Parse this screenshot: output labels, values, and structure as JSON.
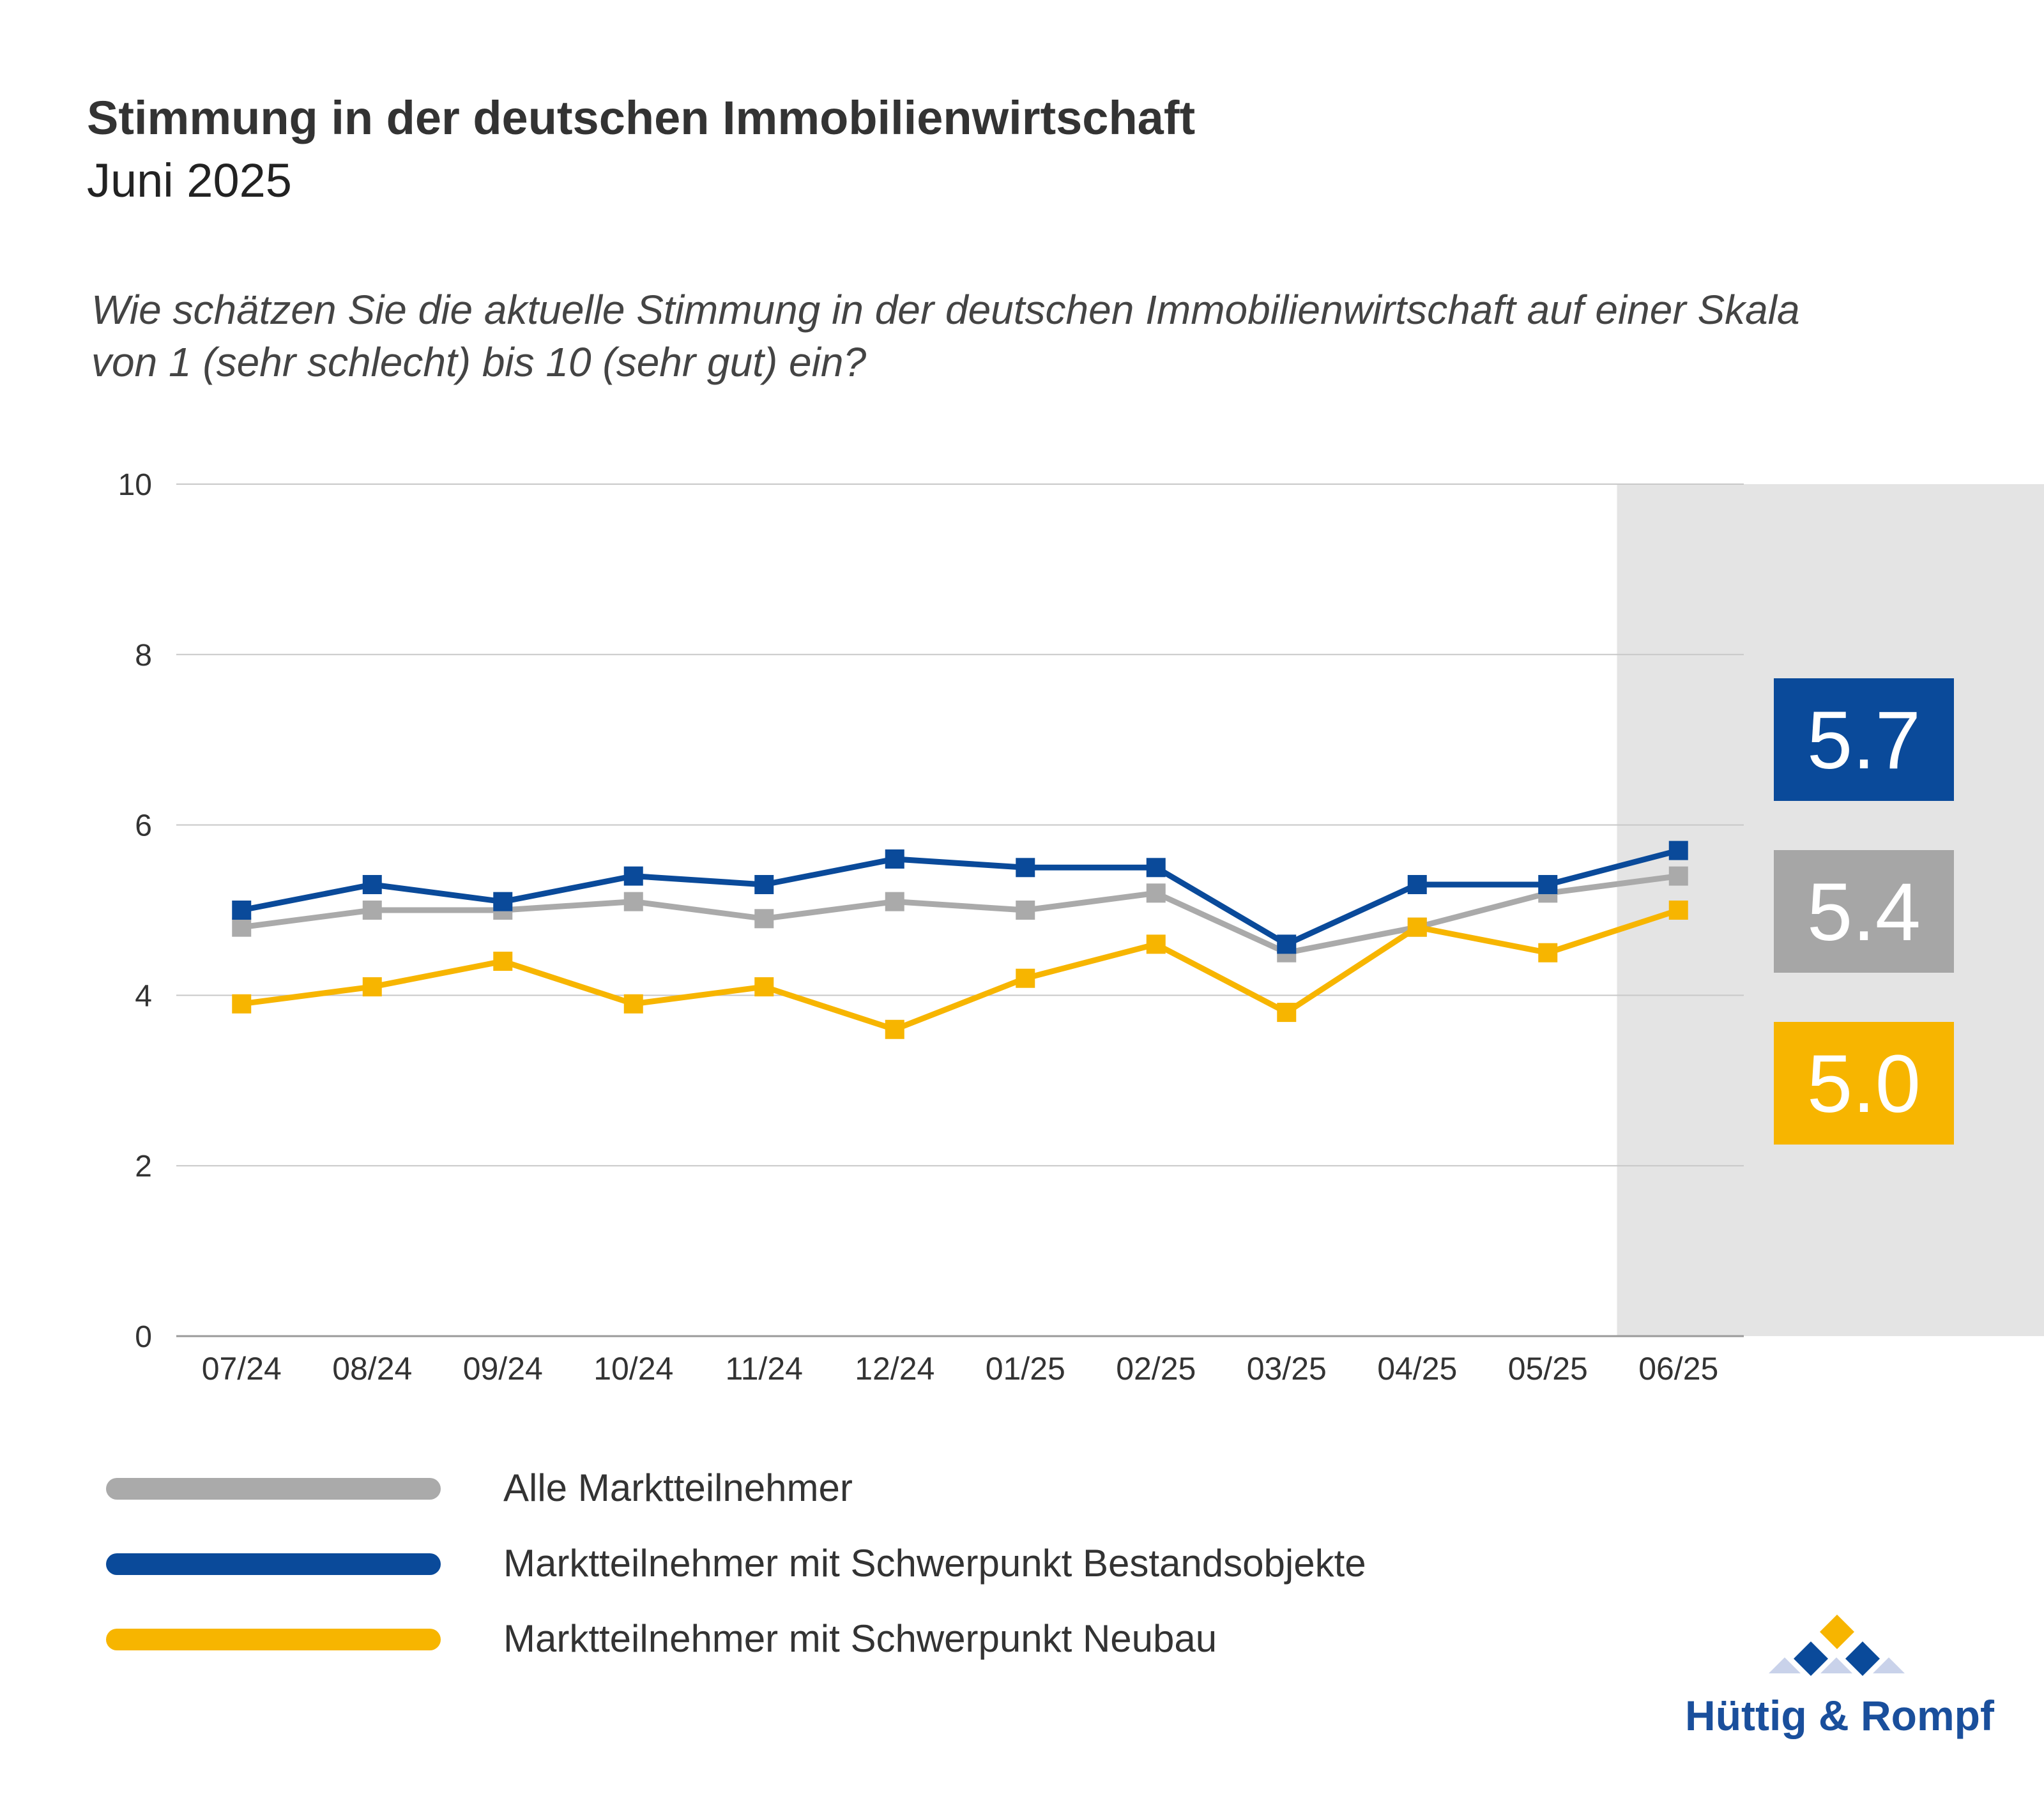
{
  "header": {
    "title": "Stimmung in der deutschen Immobilienwirtschaft",
    "subtitle": "Juni 2025"
  },
  "question": {
    "line1": "Wie schätzen Sie die aktuelle Stimmung in der deutschen Immobilienwirtschaft auf einer Skala",
    "line2": "von 1 (sehr schlecht) bis 10 (sehr gut) ein?"
  },
  "chart_data": {
    "type": "line",
    "x": [
      "07/24",
      "08/24",
      "09/24",
      "10/24",
      "11/24",
      "12/24",
      "01/25",
      "02/25",
      "03/25",
      "04/25",
      "05/25",
      "06/25"
    ],
    "ylim": [
      0,
      10
    ],
    "yticks": [
      0,
      2,
      4,
      6,
      8,
      10
    ],
    "grid": true,
    "highlight_last_category": true,
    "series": [
      {
        "name": "Alle Marktteilnehmer",
        "color": "#aaaaaa",
        "values": [
          4.8,
          5.0,
          5.0,
          5.1,
          4.9,
          5.1,
          5.0,
          5.2,
          4.5,
          4.8,
          5.2,
          5.4
        ]
      },
      {
        "name": "Marktteilnehmer mit Schwerpunkt Bestandsobjekte",
        "color": "#0a4a9a",
        "values": [
          5.0,
          5.3,
          5.1,
          5.4,
          5.3,
          5.6,
          5.5,
          5.5,
          4.6,
          5.3,
          5.3,
          5.7
        ]
      },
      {
        "name": "Marktteilnehmer mit Schwerpunkt Neubau",
        "color": "#f7b500",
        "values": [
          3.9,
          4.1,
          4.4,
          3.9,
          4.1,
          3.6,
          4.2,
          4.6,
          3.8,
          4.8,
          4.5,
          5.0
        ]
      }
    ],
    "current_values": [
      {
        "label": "5.7",
        "color": "#0a4a9a"
      },
      {
        "label": "5.4",
        "color": "#a6a6a6"
      },
      {
        "label": "5.0",
        "color": "#f7b500"
      }
    ]
  },
  "legend": {
    "items": [
      {
        "label": "Alle Marktteilnehmer",
        "color": "#aaaaaa"
      },
      {
        "label": "Marktteilnehmer mit Schwerpunkt Bestandsobjekte",
        "color": "#0a4a9a"
      },
      {
        "label": "Marktteilnehmer mit Schwerpunkt Neubau",
        "color": "#f7b500"
      }
    ]
  },
  "logo": {
    "text": "Hüttig & Rompf"
  }
}
